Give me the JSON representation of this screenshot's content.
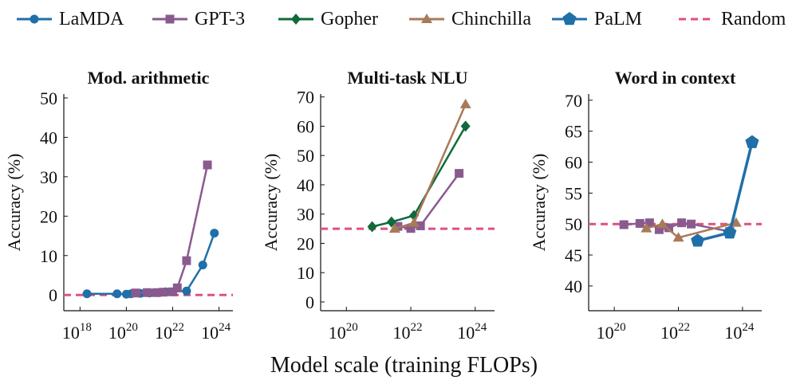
{
  "colors": {
    "LaMDA": "#1f6fa8",
    "GPT-3": "#8a5a8f",
    "Gopher": "#0f6b3a",
    "Chinchilla": "#a87a58",
    "PaLM": "#1f6fa8",
    "Random": "#e0507e"
  },
  "legend": [
    {
      "name": "LaMDA",
      "marker": "circle",
      "dashed": false
    },
    {
      "name": "GPT-3",
      "marker": "square",
      "dashed": false
    },
    {
      "name": "Gopher",
      "marker": "diamond",
      "dashed": false
    },
    {
      "name": "Chinchilla",
      "marker": "triangle",
      "dashed": false
    },
    {
      "name": "PaLM",
      "marker": "pentagon",
      "dashed": false
    },
    {
      "name": "Random",
      "marker": "none",
      "dashed": true
    }
  ],
  "xlabel": "Model scale (training FLOPs)",
  "chart_data": [
    {
      "type": "line",
      "title": "Mod. arithmetic",
      "xlabel": "",
      "ylabel": "Accuracy (%)",
      "xscale": "log",
      "xlim_log10": [
        17.3,
        24.6
      ],
      "x_ticks_log10": [
        18,
        20,
        22,
        24
      ],
      "ylim": [
        -4,
        51
      ],
      "y_ticks": [
        0,
        10,
        20,
        30,
        40,
        50
      ],
      "random_baseline": 0,
      "series": [
        {
          "name": "LaMDA",
          "x_log10": [
            18.3,
            19.6,
            20.0,
            20.2,
            20.6,
            21.0,
            21.4,
            21.7,
            22.6,
            23.3,
            23.8
          ],
          "y": [
            0.3,
            0.3,
            0.2,
            0.3,
            0.4,
            0.5,
            0.6,
            0.8,
            1.0,
            7.6,
            15.7
          ]
        },
        {
          "name": "GPT-3",
          "x_log10": [
            20.4,
            20.9,
            21.3,
            21.6,
            22.0,
            22.2,
            22.6,
            23.5
          ],
          "y": [
            0.5,
            0.6,
            0.6,
            0.7,
            0.8,
            1.8,
            8.7,
            33.0
          ]
        }
      ]
    },
    {
      "type": "line",
      "title": "Multi-task NLU",
      "xlabel": "",
      "ylabel": "Accuracy (%)",
      "xscale": "log",
      "xlim_log10": [
        19.2,
        24.6
      ],
      "x_ticks_log10": [
        20,
        22,
        24
      ],
      "ylim": [
        -3,
        71
      ],
      "y_ticks": [
        0,
        10,
        20,
        30,
        40,
        50,
        60,
        70
      ],
      "random_baseline": 25,
      "series": [
        {
          "name": "GPT-3",
          "x_log10": [
            21.6,
            22.0,
            22.3,
            23.5
          ],
          "y": [
            25.8,
            25.1,
            26.0,
            43.9
          ]
        },
        {
          "name": "Gopher",
          "x_log10": [
            20.8,
            21.4,
            22.1,
            23.7
          ],
          "y": [
            25.7,
            27.3,
            29.5,
            60.0
          ]
        },
        {
          "name": "Chinchilla",
          "x_log10": [
            21.5,
            22.1,
            23.7
          ],
          "y": [
            25.0,
            27.0,
            67.5
          ]
        }
      ]
    },
    {
      "type": "line",
      "title": "Word in context",
      "xlabel": "",
      "ylabel": "Accuracy (%)",
      "xscale": "log",
      "xlim_log10": [
        19.2,
        24.6
      ],
      "x_ticks_log10": [
        20,
        22,
        24
      ],
      "ylim": [
        36,
        71
      ],
      "y_ticks": [
        40,
        45,
        50,
        55,
        60,
        65,
        70
      ],
      "random_baseline": 50,
      "series": [
        {
          "name": "GPT-3",
          "x_log10": [
            20.3,
            20.8,
            21.1,
            21.4,
            21.7,
            22.1,
            22.4,
            23.6
          ],
          "y": [
            49.9,
            50.1,
            50.2,
            49.1,
            49.4,
            50.2,
            50.0,
            48.8
          ]
        },
        {
          "name": "Chinchilla",
          "x_log10": [
            21.0,
            21.5,
            22.0,
            23.8
          ],
          "y": [
            49.3,
            50.0,
            47.8,
            50.2
          ]
        },
        {
          "name": "PaLM",
          "x_log10": [
            22.6,
            23.6,
            24.3
          ],
          "y": [
            47.3,
            48.6,
            63.2
          ]
        }
      ]
    }
  ]
}
